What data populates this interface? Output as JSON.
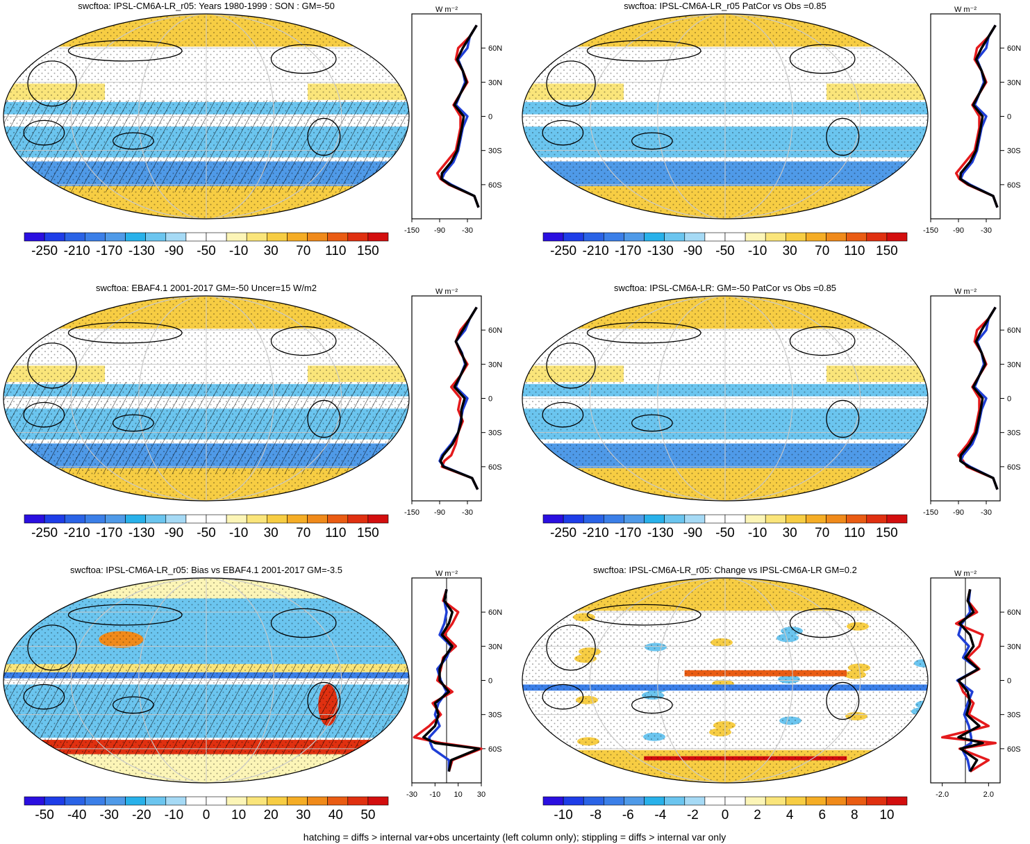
{
  "colors": {
    "model": "#e41a1c",
    "obs": "#1f3fd6",
    "mean": "#000000",
    "palette": [
      "#2a0fe0",
      "#1e3de8",
      "#2a63e6",
      "#3b7fe8",
      "#4f9ae8",
      "#28b1ea",
      "#6bc5ef",
      "#a6daf5",
      "#ffffff",
      "#ffffff",
      "#fcf5b7",
      "#fae57a",
      "#f7cd43",
      "#f5ad25",
      "#f08a1a",
      "#ea5c13",
      "#e03010",
      "#d30e0e"
    ]
  },
  "footer": "hatching = diffs > internal var+obs uncertainty (left column only); stippling = diffs > internal var only",
  "panels": [
    {
      "title": "swcftoa: IPSL-CM6A-LR_r05: Years 1980-1999 : SON : GM=-50",
      "colorbar_labels": [
        "-250",
        "-210",
        "-170",
        "-130",
        "-90",
        "-50",
        "-10",
        "30",
        "70",
        "110",
        "150"
      ],
      "profile_units": "W m⁻²",
      "profile_xticks": [
        "-150",
        "-90",
        "-30"
      ],
      "lat_labels": [
        "60N",
        "30N",
        "0",
        "30S",
        "60S"
      ],
      "pattern": "mean",
      "hatched": true
    },
    {
      "title": "swcftoa: IPSL-CM6A-LR_r05 PatCor vs Obs =0.85",
      "colorbar_labels": [
        "-250",
        "-210",
        "-170",
        "-130",
        "-90",
        "-50",
        "-10",
        "30",
        "70",
        "110",
        "150"
      ],
      "profile_units": "W m⁻²",
      "profile_xticks": [
        "-150",
        "-90",
        "-30"
      ],
      "lat_labels": [
        "60N",
        "30N",
        "0",
        "30S",
        "60S"
      ],
      "pattern": "mean",
      "hatched": false
    },
    {
      "title": "swcftoa: EBAF4.1 2001-2017 GM=-50 Uncer=15 W/m2",
      "colorbar_labels": [
        "-250",
        "-210",
        "-170",
        "-130",
        "-90",
        "-50",
        "-10",
        "30",
        "70",
        "110",
        "150"
      ],
      "profile_units": "W m⁻²",
      "profile_xticks": [
        "-150",
        "-90",
        "-30"
      ],
      "lat_labels": [
        "60N",
        "30N",
        "0",
        "30S",
        "60S"
      ],
      "pattern": "mean",
      "hatched": true
    },
    {
      "title": "swcftoa: IPSL-CM6A-LR: GM=-50 PatCor vs Obs =0.85",
      "colorbar_labels": [
        "-250",
        "-210",
        "-170",
        "-130",
        "-90",
        "-50",
        "-10",
        "30",
        "70",
        "110",
        "150"
      ],
      "profile_units": "W m⁻²",
      "profile_xticks": [
        "-150",
        "-90",
        "-30"
      ],
      "lat_labels": [
        "60N",
        "30N",
        "0",
        "30S",
        "60S"
      ],
      "pattern": "mean",
      "hatched": false
    },
    {
      "title": "swcftoa: IPSL-CM6A-LR_r05: Bias vs EBAF4.1 2001-2017  GM=-3.5",
      "colorbar_labels": [
        "-50",
        "-40",
        "-30",
        "-20",
        "-10",
        "0",
        "10",
        "20",
        "30",
        "40",
        "50"
      ],
      "profile_units": "W m⁻²",
      "profile_xticks": [
        "-30",
        "-10",
        "10",
        "30"
      ],
      "lat_labels": [
        "60N",
        "30N",
        "0",
        "30S",
        "60S"
      ],
      "pattern": "bias",
      "hatched": true
    },
    {
      "title": "swcftoa: IPSL-CM6A-LR_r05: Change vs IPSL-CM6A-LR GM=0.2",
      "colorbar_labels": [
        "-10",
        "-8",
        "-6",
        "-4",
        "-2",
        "0",
        "2",
        "4",
        "6",
        "8",
        "10"
      ],
      "profile_units": "W m⁻²",
      "profile_xticks": [
        "-2.0",
        "2.0"
      ],
      "lat_labels": [
        "60N",
        "30N",
        "0",
        "30S",
        "60S"
      ],
      "pattern": "change",
      "hatched": false
    }
  ],
  "chart_data": [
    {
      "type": "line",
      "lat": [
        -80,
        -70,
        -60,
        -55,
        -50,
        -40,
        -30,
        -20,
        -10,
        0,
        10,
        20,
        30,
        40,
        50,
        60,
        70,
        80
      ],
      "xlim": [
        -150,
        0
      ],
      "series": [
        {
          "values": [
            -6,
            -15,
            -70,
            -88,
            -95,
            -75,
            -55,
            -50,
            -45,
            -45,
            -60,
            -45,
            -30,
            -40,
            -55,
            -50,
            -25,
            -10
          ]
        },
        {
          "values": [
            -6,
            -15,
            -65,
            -85,
            -80,
            -60,
            -50,
            -45,
            -40,
            -30,
            -55,
            -45,
            -35,
            -40,
            -50,
            -30,
            -25,
            -10
          ]
        },
        {
          "values": [
            -6,
            -15,
            -68,
            -86,
            -85,
            -65,
            -52,
            -47,
            -42,
            -38,
            -58,
            -45,
            -32,
            -40,
            -52,
            -40,
            -25,
            -10
          ]
        }
      ]
    },
    {
      "type": "line",
      "lat": [
        -80,
        -70,
        -60,
        -55,
        -50,
        -40,
        -30,
        -20,
        -10,
        0,
        10,
        20,
        30,
        40,
        50,
        60,
        70,
        80
      ],
      "xlim": [
        -150,
        0
      ],
      "series": [
        {
          "values": [
            -6,
            -15,
            -70,
            -88,
            -95,
            -75,
            -55,
            -50,
            -45,
            -45,
            -60,
            -45,
            -30,
            -40,
            -55,
            -50,
            -25,
            -10
          ]
        },
        {
          "values": [
            -6,
            -15,
            -65,
            -85,
            -80,
            -60,
            -50,
            -45,
            -40,
            -30,
            -55,
            -45,
            -35,
            -40,
            -50,
            -30,
            -25,
            -10
          ]
        },
        {
          "values": [
            -6,
            -15,
            -68,
            -86,
            -85,
            -65,
            -52,
            -47,
            -42,
            -38,
            -58,
            -45,
            -32,
            -40,
            -52,
            -40,
            -25,
            -10
          ]
        }
      ]
    },
    {
      "type": "line",
      "lat": [
        -80,
        -70,
        -60,
        -55,
        -50,
        -40,
        -30,
        -20,
        -10,
        0,
        10,
        20,
        30,
        40,
        50,
        60,
        70,
        80
      ],
      "xlim": [
        -150,
        0
      ],
      "series": [
        {
          "values": [
            -8,
            -20,
            -85,
            -80,
            -65,
            -55,
            -50,
            -40,
            -50,
            -45,
            -65,
            -45,
            -30,
            -45,
            -55,
            -45,
            -25,
            -10
          ]
        },
        {
          "values": [
            -8,
            -20,
            -80,
            -90,
            -85,
            -65,
            -50,
            -45,
            -40,
            -30,
            -55,
            -45,
            -35,
            -42,
            -55,
            -35,
            -25,
            -10
          ]
        },
        {
          "values": [
            -8,
            -20,
            -82,
            -88,
            -82,
            -62,
            -50,
            -43,
            -43,
            -36,
            -58,
            -45,
            -33,
            -43,
            -55,
            -40,
            -25,
            -10
          ]
        }
      ]
    },
    {
      "type": "line",
      "lat": [
        -80,
        -70,
        -60,
        -55,
        -50,
        -40,
        -30,
        -20,
        -10,
        0,
        10,
        20,
        30,
        40,
        50,
        60,
        70,
        80
      ],
      "xlim": [
        -150,
        0
      ],
      "series": [
        {
          "values": [
            -6,
            -15,
            -72,
            -80,
            -90,
            -70,
            -55,
            -50,
            -45,
            -45,
            -60,
            -45,
            -30,
            -40,
            -55,
            -50,
            -25,
            -10
          ]
        },
        {
          "values": [
            -6,
            -15,
            -65,
            -85,
            -80,
            -60,
            -50,
            -45,
            -40,
            -30,
            -55,
            -45,
            -35,
            -40,
            -50,
            -30,
            -25,
            -10
          ]
        },
        {
          "values": [
            -6,
            -15,
            -68,
            -86,
            -85,
            -65,
            -52,
            -47,
            -42,
            -38,
            -58,
            -45,
            -32,
            -40,
            -52,
            -40,
            -25,
            -10
          ]
        }
      ]
    },
    {
      "type": "line",
      "lat": [
        -80,
        -70,
        -60,
        -55,
        -50,
        -40,
        -30,
        -20,
        -10,
        0,
        10,
        20,
        30,
        40,
        50,
        60,
        70,
        80
      ],
      "xlim": [
        -30,
        30
      ],
      "series": [
        {
          "values": [
            2,
            5,
            30,
            -5,
            -28,
            -15,
            -5,
            -12,
            5,
            -8,
            -5,
            -3,
            8,
            -2,
            5,
            10,
            -3,
            0
          ]
        },
        {
          "values": [
            2,
            2,
            -12,
            -14,
            -15,
            -6,
            -10,
            -7,
            0,
            -5,
            -8,
            0,
            4,
            -6,
            -2,
            0,
            -2,
            0
          ]
        },
        {
          "values": [
            2,
            4,
            28,
            -10,
            -20,
            -10,
            -7,
            -10,
            2,
            -6,
            -6,
            -2,
            5,
            -4,
            2,
            5,
            -2,
            0
          ]
        }
      ]
    },
    {
      "type": "line",
      "lat": [
        -80,
        -70,
        -60,
        -55,
        -50,
        -40,
        -30,
        -20,
        -10,
        0,
        10,
        20,
        30,
        40,
        50,
        60,
        70,
        80
      ],
      "xlim": [
        -3,
        3
      ],
      "series": [
        {
          "values": [
            0.4,
            2.0,
            -0.5,
            2.6,
            -2.0,
            2.0,
            0.3,
            0.7,
            -0.2,
            -0.6,
            1.2,
            0.2,
            1.2,
            1.5,
            -0.8,
            1.0,
            0.2,
            0.4
          ]
        },
        {
          "values": [
            0.4,
            0.2,
            -0.3,
            0.5,
            0.5,
            0.3,
            -0.1,
            0.2,
            0.6,
            -0.7,
            1.1,
            -0.2,
            0.3,
            -0.6,
            -0.3,
            0.4,
            0.3,
            0.4
          ]
        },
        {
          "values": [
            0.4,
            1.0,
            -0.4,
            1.5,
            -0.6,
            1.2,
            0.1,
            0.4,
            0.2,
            -0.6,
            1.1,
            0.0,
            0.7,
            0.4,
            -0.5,
            0.7,
            0.2,
            0.4
          ]
        }
      ]
    }
  ]
}
